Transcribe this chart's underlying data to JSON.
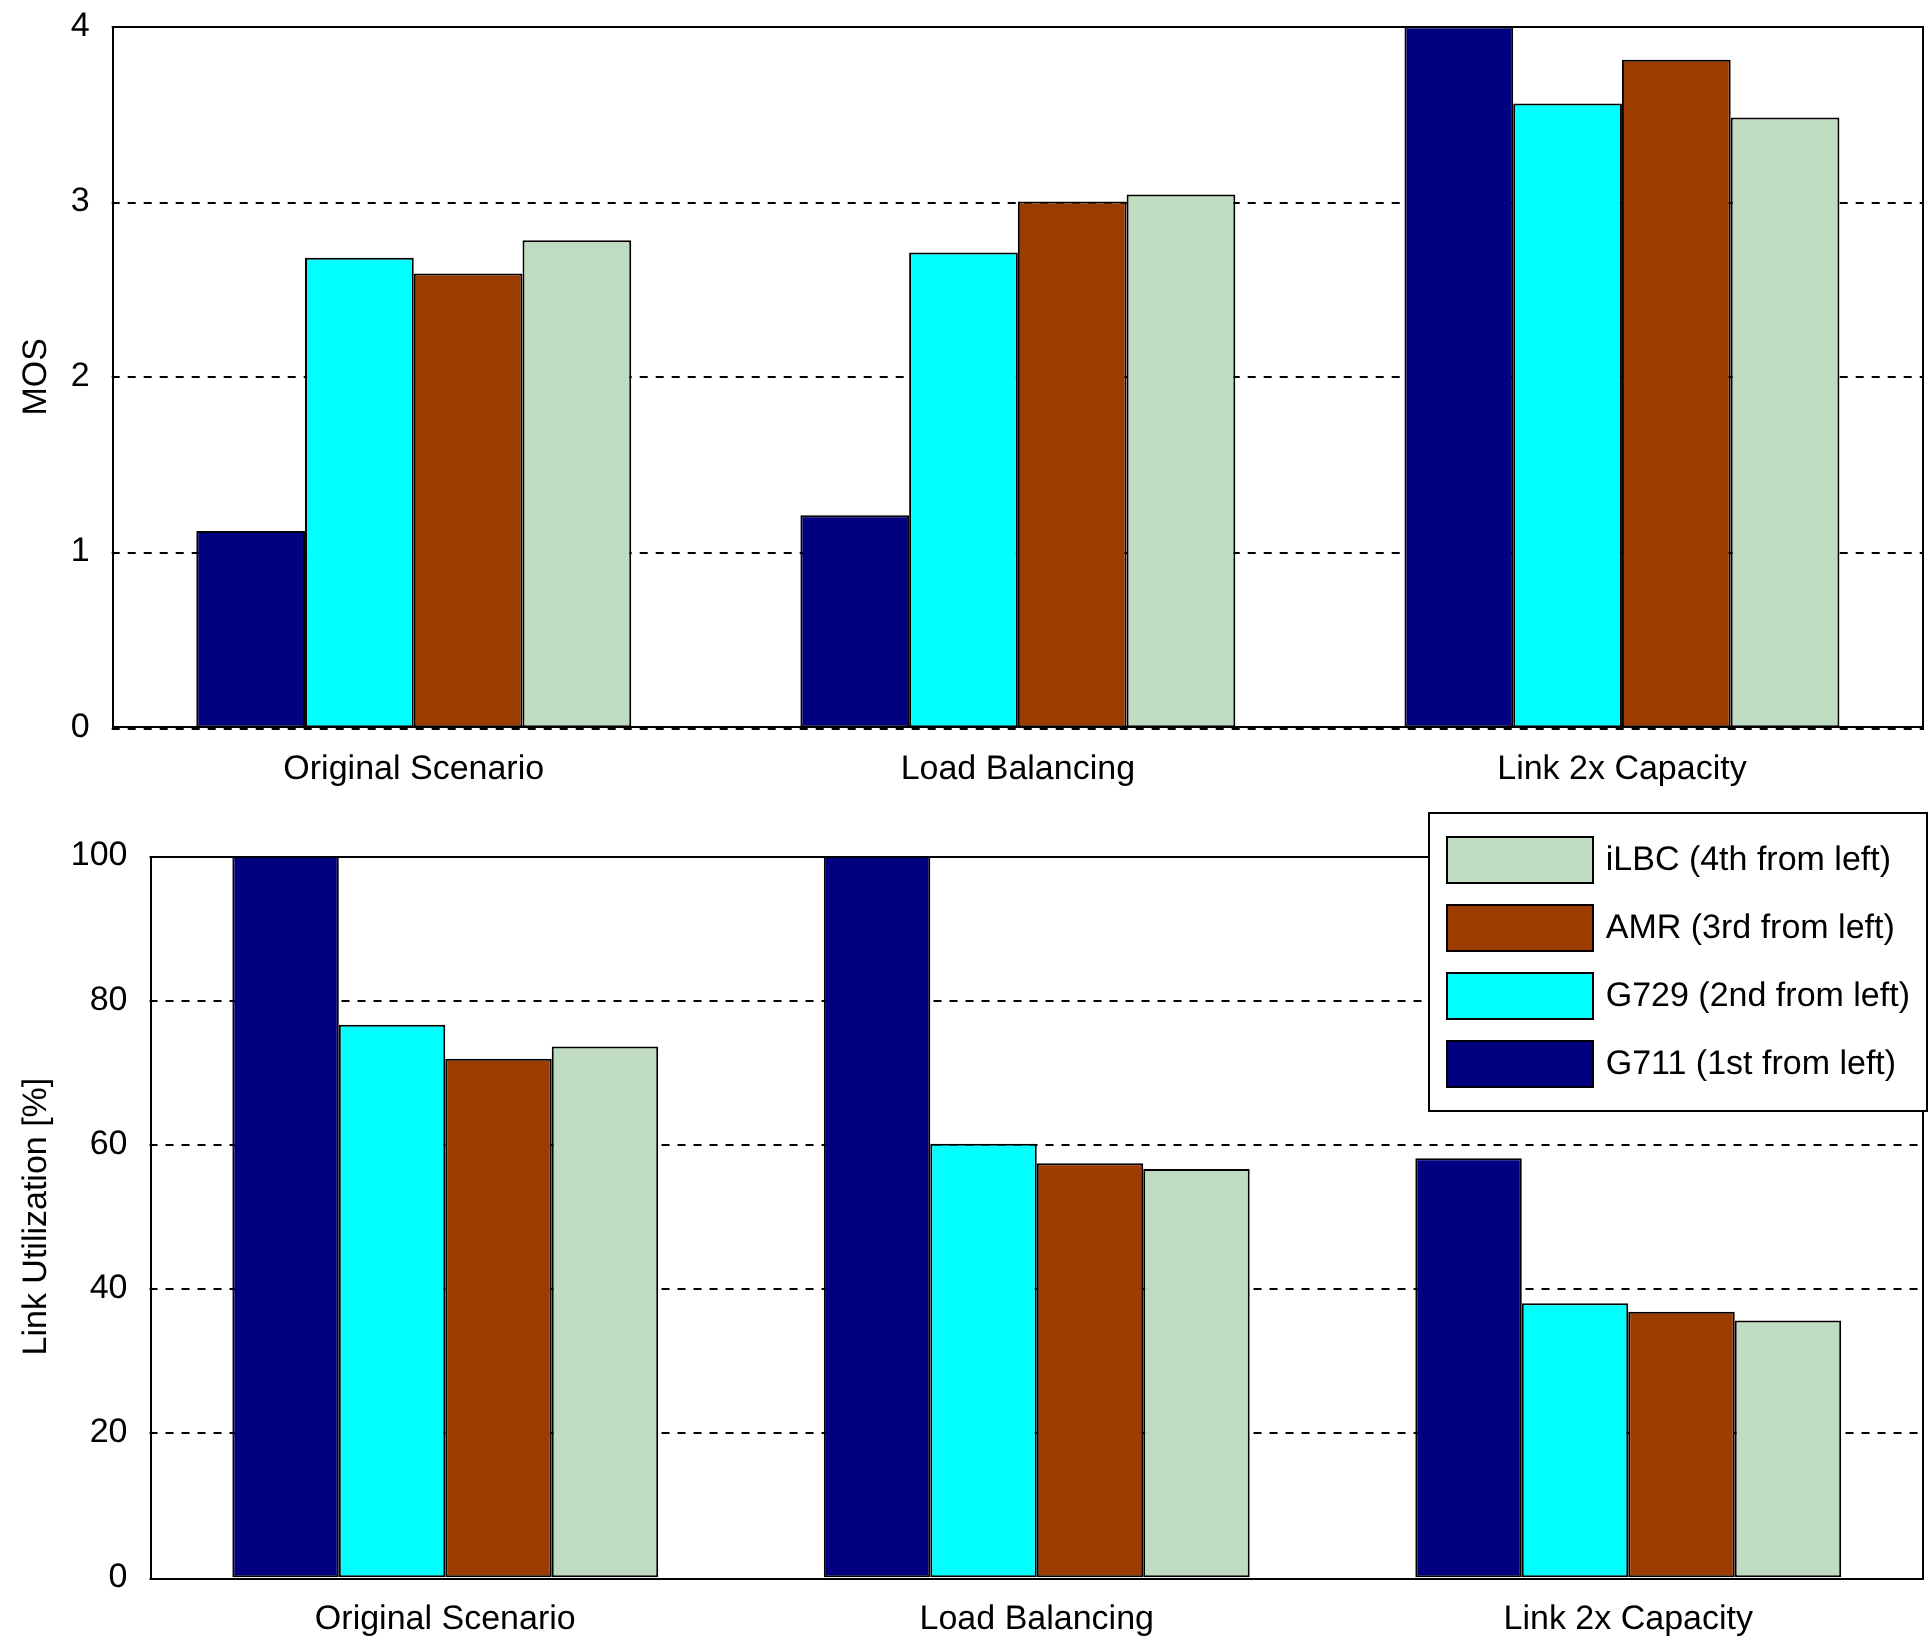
{
  "chart_data": [
    {
      "type": "bar",
      "categories": [
        "Original Scenario",
        "Load Balancing",
        "Link 2x Capacity"
      ],
      "ylabel": "MOS",
      "ylim": [
        0,
        4
      ],
      "yticks": [
        0,
        1,
        2,
        3,
        4
      ],
      "grid": "y",
      "series": [
        {
          "color": "#000080",
          "values": [
            1.12,
            1.21,
            4.0
          ]
        },
        {
          "color": "#00ffff",
          "values": [
            2.68,
            2.71,
            3.56
          ]
        },
        {
          "color": "#9c3c00",
          "values": [
            2.59,
            3.0,
            3.81
          ]
        },
        {
          "color": "#c0dcc0",
          "values": [
            2.78,
            3.04,
            3.48
          ]
        }
      ]
    },
    {
      "type": "bar",
      "categories": [
        "Original Scenario",
        "Load Balancing",
        "Link 2x Capacity"
      ],
      "ylabel": "Link Utilization [%]",
      "ylim": [
        0,
        100
      ],
      "yticks": [
        0,
        20,
        40,
        60,
        80,
        100
      ],
      "grid": "y",
      "legend": "top right",
      "series": [
        {
          "name": "G711 (1st from left)",
          "color": "#000080",
          "values": [
            100,
            100,
            58.1
          ]
        },
        {
          "name": "G729 (2nd from left)",
          "color": "#00ffff",
          "values": [
            76.6,
            60.1,
            38.0
          ]
        },
        {
          "name": "AMR (3rd from left)",
          "color": "#9c3c00",
          "values": [
            71.9,
            57.4,
            36.8
          ]
        },
        {
          "name": "iLBC (4th from left)",
          "color": "#c0dcc0",
          "values": [
            73.6,
            56.6,
            35.6
          ]
        }
      ]
    }
  ]
}
